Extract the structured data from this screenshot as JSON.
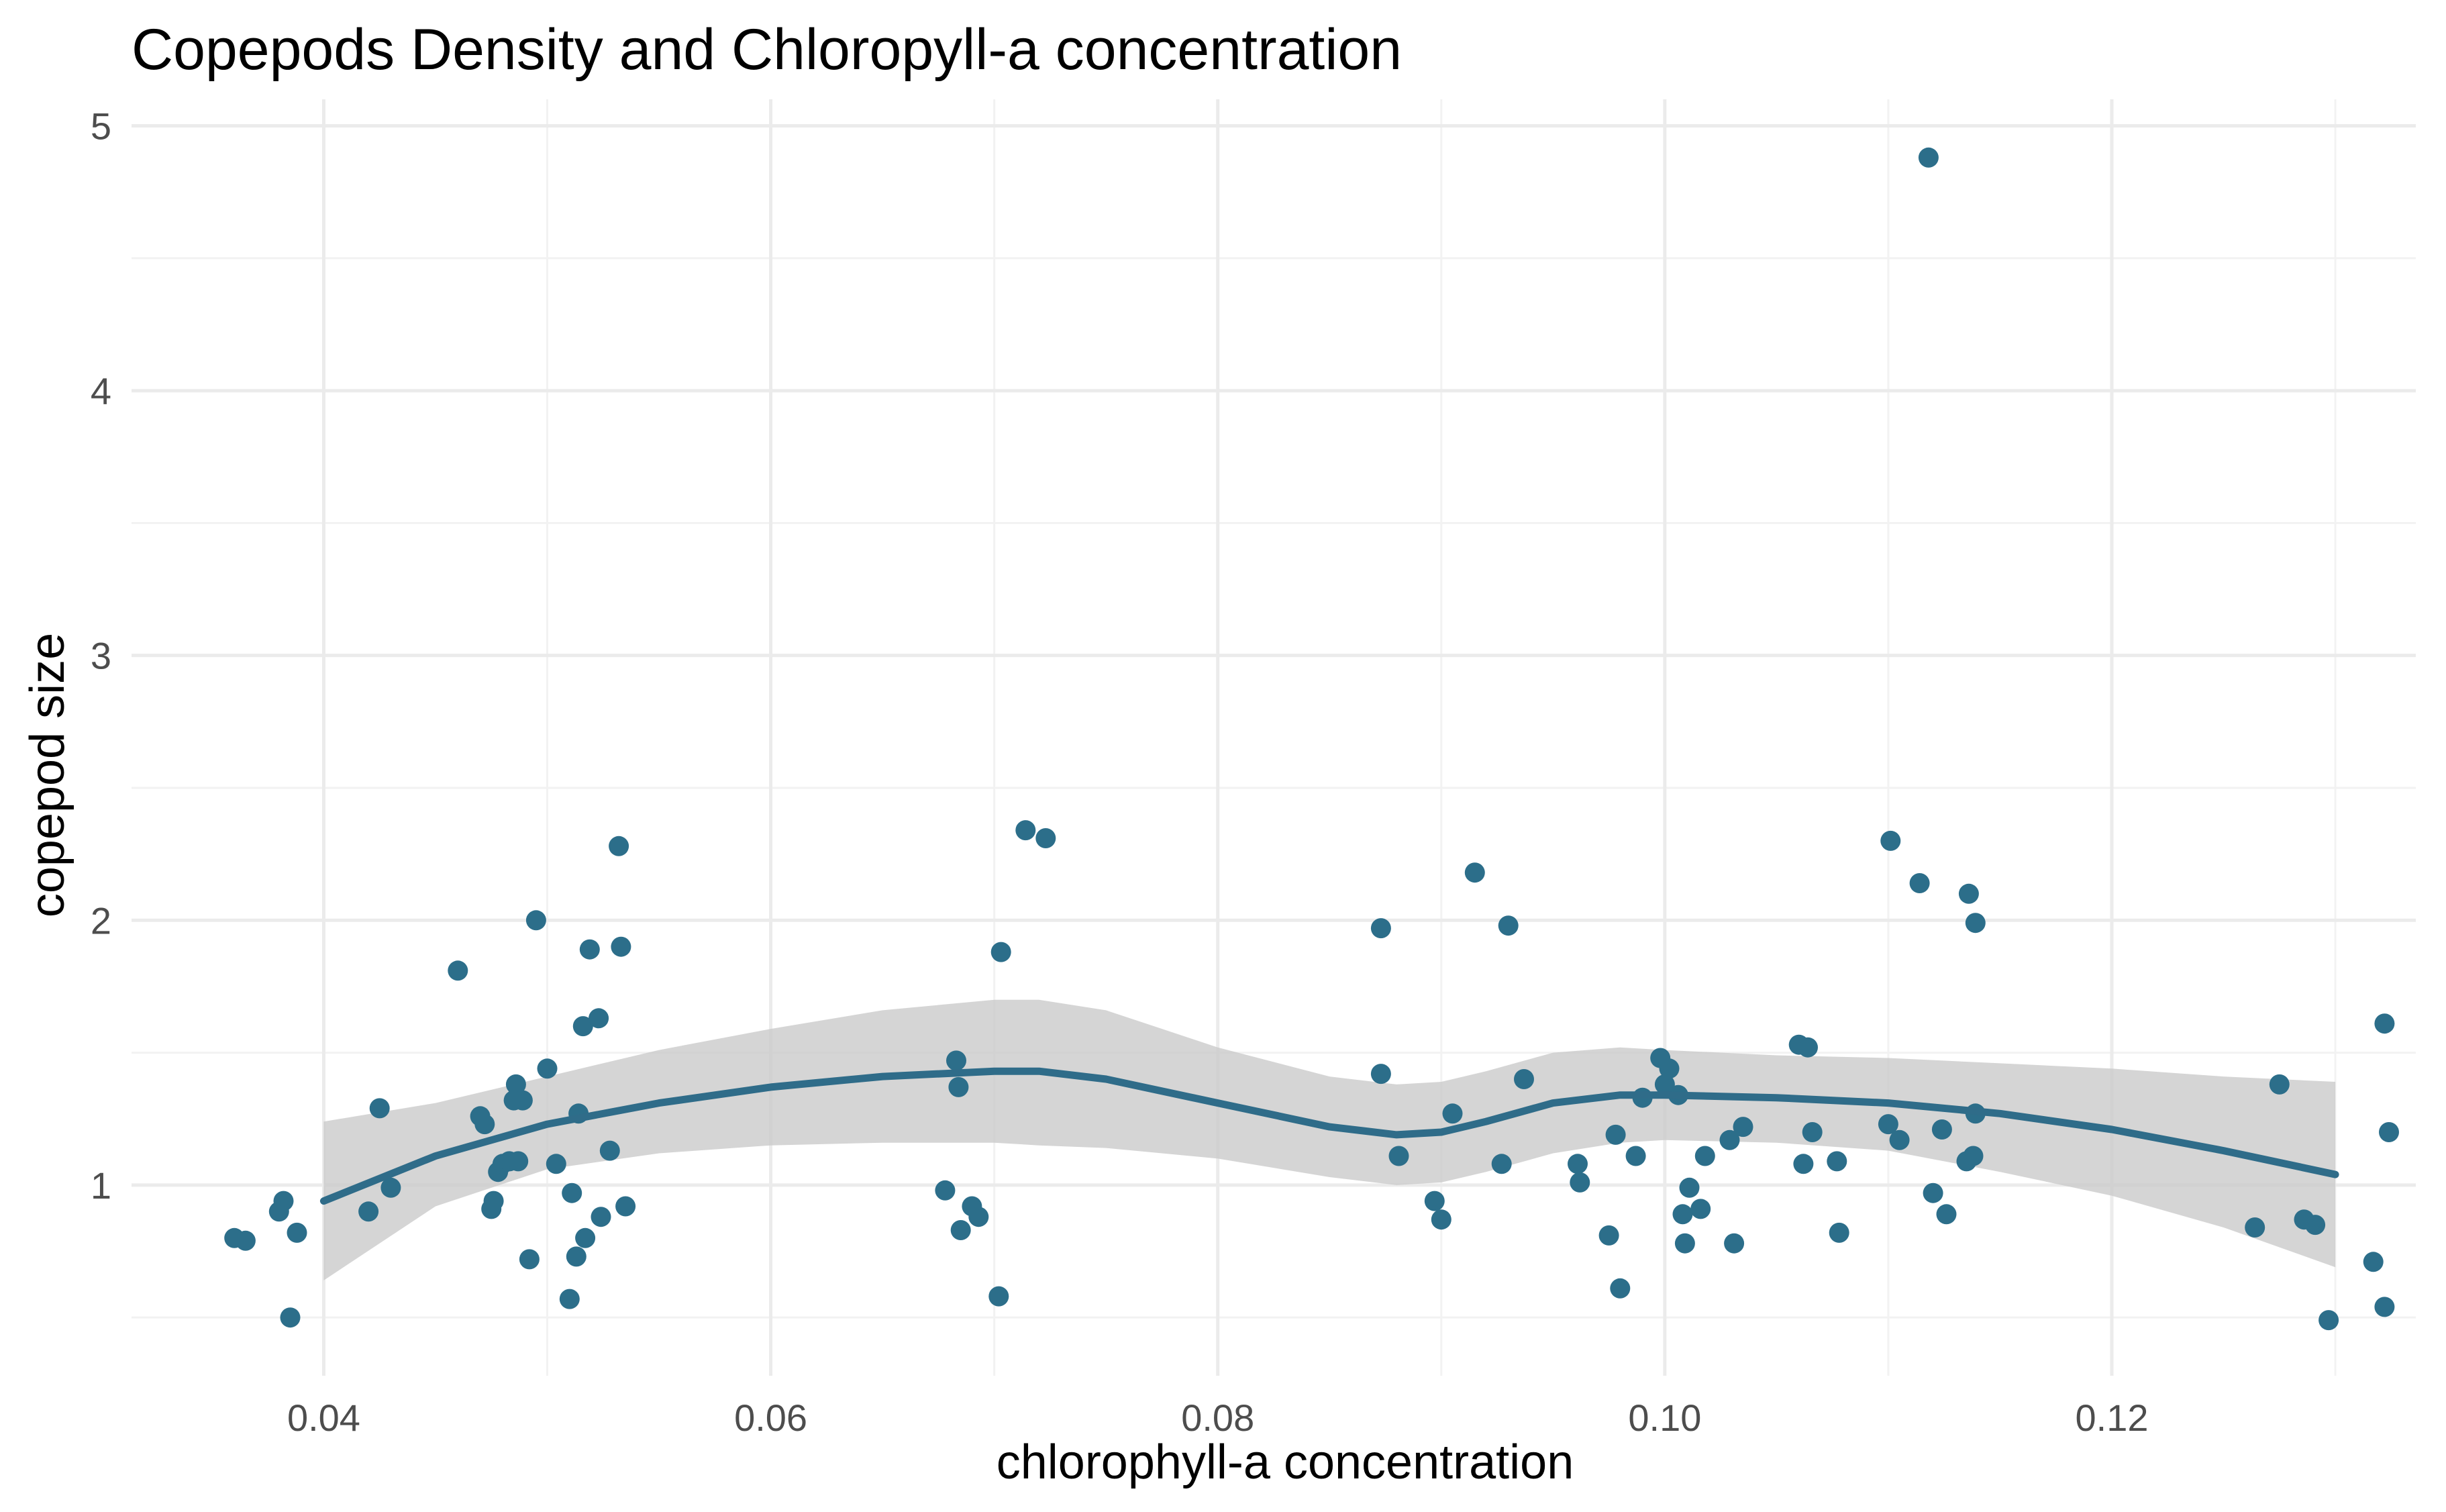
{
  "chart_data": {
    "type": "scatter",
    "title": "Copepods Density and Chloropyll-a concentration",
    "xlabel": "chlorophyll-a concentration",
    "ylabel": "copepod size",
    "xlim": [
      0.0314,
      0.1336
    ],
    "ylim": [
      0.28,
      5.1
    ],
    "x_ticks": [
      0.04,
      0.06,
      0.08,
      0.1,
      0.12
    ],
    "x_tick_labels": [
      "0.04",
      "0.06",
      "0.08",
      "0.10",
      "0.12"
    ],
    "y_ticks": [
      1,
      2,
      3,
      4,
      5
    ],
    "y_tick_labels": [
      "1",
      "2",
      "3",
      "4",
      "5"
    ],
    "grid": true,
    "colors": {
      "points": "#2c6e8a",
      "line": "#2f6c89",
      "ribbon": "#c9c9c9"
    },
    "points": [
      {
        "x": 0.036,
        "y": 0.8
      },
      {
        "x": 0.0365,
        "y": 0.79
      },
      {
        "x": 0.038,
        "y": 0.9
      },
      {
        "x": 0.0382,
        "y": 0.94
      },
      {
        "x": 0.0385,
        "y": 0.5
      },
      {
        "x": 0.0388,
        "y": 0.82
      },
      {
        "x": 0.042,
        "y": 0.9
      },
      {
        "x": 0.0425,
        "y": 1.29
      },
      {
        "x": 0.043,
        "y": 0.99
      },
      {
        "x": 0.046,
        "y": 1.81
      },
      {
        "x": 0.047,
        "y": 1.26
      },
      {
        "x": 0.0472,
        "y": 1.23
      },
      {
        "x": 0.0475,
        "y": 0.91
      },
      {
        "x": 0.0476,
        "y": 0.94
      },
      {
        "x": 0.0478,
        "y": 1.05
      },
      {
        "x": 0.048,
        "y": 1.08
      },
      {
        "x": 0.0483,
        "y": 1.09
      },
      {
        "x": 0.0485,
        "y": 1.32
      },
      {
        "x": 0.0486,
        "y": 1.38
      },
      {
        "x": 0.0487,
        "y": 1.09
      },
      {
        "x": 0.0489,
        "y": 1.32
      },
      {
        "x": 0.0492,
        "y": 0.72
      },
      {
        "x": 0.0495,
        "y": 2.0
      },
      {
        "x": 0.05,
        "y": 1.44
      },
      {
        "x": 0.0504,
        "y": 1.08
      },
      {
        "x": 0.051,
        "y": 0.57
      },
      {
        "x": 0.0511,
        "y": 0.97
      },
      {
        "x": 0.0513,
        "y": 0.73
      },
      {
        "x": 0.0514,
        "y": 1.27
      },
      {
        "x": 0.0516,
        "y": 1.6
      },
      {
        "x": 0.0517,
        "y": 0.8
      },
      {
        "x": 0.0519,
        "y": 1.89
      },
      {
        "x": 0.0523,
        "y": 1.63
      },
      {
        "x": 0.0524,
        "y": 0.88
      },
      {
        "x": 0.0528,
        "y": 1.13
      },
      {
        "x": 0.0532,
        "y": 2.28
      },
      {
        "x": 0.0533,
        "y": 1.9
      },
      {
        "x": 0.0535,
        "y": 0.92
      },
      {
        "x": 0.0678,
        "y": 0.98
      },
      {
        "x": 0.0683,
        "y": 1.47
      },
      {
        "x": 0.0684,
        "y": 1.37
      },
      {
        "x": 0.0685,
        "y": 0.83
      },
      {
        "x": 0.069,
        "y": 0.92
      },
      {
        "x": 0.0693,
        "y": 0.88
      },
      {
        "x": 0.0702,
        "y": 0.58
      },
      {
        "x": 0.0703,
        "y": 1.88
      },
      {
        "x": 0.0714,
        "y": 2.34
      },
      {
        "x": 0.0723,
        "y": 2.31
      },
      {
        "x": 0.0873,
        "y": 1.97
      },
      {
        "x": 0.0873,
        "y": 1.42
      },
      {
        "x": 0.0881,
        "y": 1.11
      },
      {
        "x": 0.0897,
        "y": 0.94
      },
      {
        "x": 0.09,
        "y": 0.87
      },
      {
        "x": 0.0905,
        "y": 1.27
      },
      {
        "x": 0.0915,
        "y": 2.18
      },
      {
        "x": 0.0927,
        "y": 1.08
      },
      {
        "x": 0.093,
        "y": 1.98
      },
      {
        "x": 0.0937,
        "y": 1.4
      },
      {
        "x": 0.0961,
        "y": 1.08
      },
      {
        "x": 0.0962,
        "y": 1.01
      },
      {
        "x": 0.0975,
        "y": 0.81
      },
      {
        "x": 0.0978,
        "y": 1.19
      },
      {
        "x": 0.098,
        "y": 0.61
      },
      {
        "x": 0.0987,
        "y": 1.11
      },
      {
        "x": 0.099,
        "y": 1.33
      },
      {
        "x": 0.0998,
        "y": 1.48
      },
      {
        "x": 0.1,
        "y": 1.38
      },
      {
        "x": 0.1002,
        "y": 1.44
      },
      {
        "x": 0.1006,
        "y": 1.34
      },
      {
        "x": 0.1008,
        "y": 0.89
      },
      {
        "x": 0.1009,
        "y": 0.78
      },
      {
        "x": 0.1011,
        "y": 0.99
      },
      {
        "x": 0.1016,
        "y": 0.91
      },
      {
        "x": 0.1018,
        "y": 1.11
      },
      {
        "x": 0.1029,
        "y": 1.17
      },
      {
        "x": 0.1031,
        "y": 0.78
      },
      {
        "x": 0.1035,
        "y": 1.22
      },
      {
        "x": 0.106,
        "y": 1.53
      },
      {
        "x": 0.1062,
        "y": 1.08
      },
      {
        "x": 0.1064,
        "y": 1.52
      },
      {
        "x": 0.1066,
        "y": 1.2
      },
      {
        "x": 0.1077,
        "y": 1.09
      },
      {
        "x": 0.1078,
        "y": 0.82
      },
      {
        "x": 0.11,
        "y": 1.23
      },
      {
        "x": 0.1101,
        "y": 2.3
      },
      {
        "x": 0.1105,
        "y": 1.17
      },
      {
        "x": 0.1114,
        "y": 2.14
      },
      {
        "x": 0.1118,
        "y": 4.88
      },
      {
        "x": 0.112,
        "y": 0.97
      },
      {
        "x": 0.1124,
        "y": 1.21
      },
      {
        "x": 0.1126,
        "y": 0.89
      },
      {
        "x": 0.1135,
        "y": 1.09
      },
      {
        "x": 0.1136,
        "y": 2.1
      },
      {
        "x": 0.1138,
        "y": 1.11
      },
      {
        "x": 0.1139,
        "y": 1.99
      },
      {
        "x": 0.1139,
        "y": 1.27
      },
      {
        "x": 0.1264,
        "y": 0.84
      },
      {
        "x": 0.1275,
        "y": 1.38
      },
      {
        "x": 0.1286,
        "y": 0.87
      },
      {
        "x": 0.1291,
        "y": 0.85
      },
      {
        "x": 0.1297,
        "y": 0.49
      },
      {
        "x": 0.1317,
        "y": 0.71
      },
      {
        "x": 0.1322,
        "y": 1.61
      },
      {
        "x": 0.1322,
        "y": 0.54
      },
      {
        "x": 0.1324,
        "y": 1.2
      }
    ],
    "smooth": {
      "x": [
        0.04,
        0.045,
        0.05,
        0.055,
        0.06,
        0.065,
        0.07,
        0.072,
        0.075,
        0.08,
        0.085,
        0.088,
        0.09,
        0.092,
        0.095,
        0.098,
        0.1,
        0.105,
        0.11,
        0.115,
        0.12,
        0.125,
        0.13
      ],
      "y": [
        0.94,
        1.11,
        1.23,
        1.31,
        1.37,
        1.41,
        1.43,
        1.43,
        1.4,
        1.31,
        1.22,
        1.19,
        1.2,
        1.24,
        1.31,
        1.34,
        1.34,
        1.33,
        1.31,
        1.27,
        1.21,
        1.13,
        1.04
      ],
      "lower": [
        0.64,
        0.92,
        1.06,
        1.12,
        1.15,
        1.16,
        1.16,
        1.15,
        1.14,
        1.1,
        1.03,
        1.0,
        1.01,
        1.05,
        1.12,
        1.16,
        1.17,
        1.16,
        1.13,
        1.05,
        0.96,
        0.84,
        0.69
      ],
      "upper": [
        1.24,
        1.31,
        1.41,
        1.51,
        1.59,
        1.66,
        1.7,
        1.7,
        1.66,
        1.52,
        1.41,
        1.38,
        1.39,
        1.43,
        1.5,
        1.52,
        1.51,
        1.49,
        1.48,
        1.46,
        1.44,
        1.41,
        1.39
      ]
    }
  }
}
